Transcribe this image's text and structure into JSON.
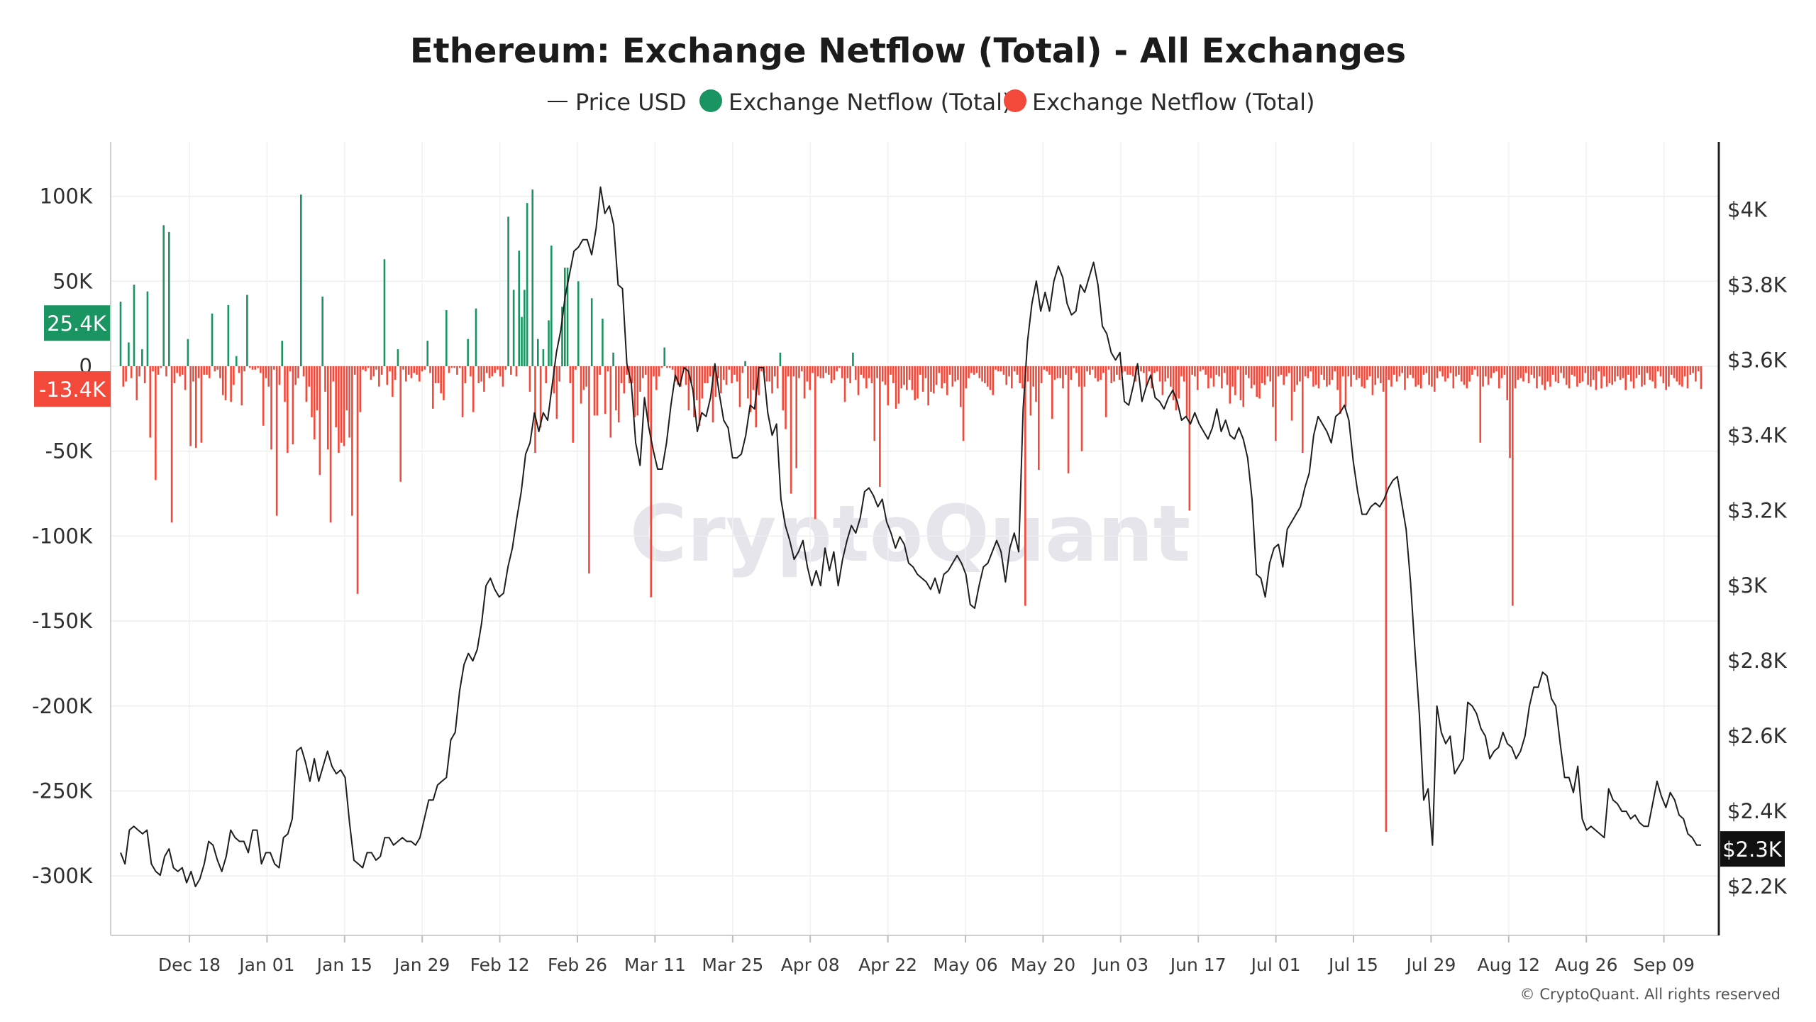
{
  "chart_data": {
    "type": "bar",
    "title": "Ethereum: Exchange Netflow (Total) - All Exchanges",
    "legend": [
      {
        "label": "Price USD",
        "symbol": "line",
        "color": "#222222"
      },
      {
        "label": "Exchange Netflow (Total)",
        "symbol": "dot",
        "color": "#1a9461"
      },
      {
        "label": "Exchange Netflow (Total)",
        "symbol": "dot",
        "color": "#f2493b"
      }
    ],
    "legend_position": "top",
    "x_ticks": [
      "Dec 18",
      "Jan 01",
      "Jan 15",
      "Jan 29",
      "Feb 12",
      "Feb 26",
      "Mar 11",
      "Mar 25",
      "Apr 08",
      "Apr 22",
      "May 06",
      "May 20",
      "Jun 03",
      "Jun 17",
      "Jul 01",
      "Jul 15",
      "Jul 29",
      "Aug 12",
      "Aug 26",
      "Sep 09"
    ],
    "left_axis": {
      "ticks": [
        "100K",
        "50K",
        "0",
        "-50K",
        "-100K",
        "-150K",
        "-200K",
        "-250K",
        "-300K"
      ],
      "ylim": [
        -335000,
        132000
      ]
    },
    "right_axis": {
      "ticks": [
        "$4K",
        "$3.8K",
        "$3.6K",
        "$3.4K",
        "$3.2K",
        "$3K",
        "$2.8K",
        "$2.6K",
        "$2.4K",
        "$2.2K"
      ],
      "ylim": [
        2070,
        4180
      ]
    },
    "badges": {
      "pos_value": "25.4K",
      "neg_value": "-13.4K",
      "price_value": "$2.3K"
    },
    "colors": {
      "inflow": "#1a9461",
      "outflow": "#f2493b",
      "price": "#1e1e1e",
      "badge_price": "#111111"
    },
    "watermark": "CryptoQuant",
    "copyright": "© CryptoQuant. All rights reserved",
    "grid": true,
    "series": [
      {
        "name": "Exchange Netflow (Total)",
        "kind": "bar",
        "values": [
          38000,
          -12000,
          -9000,
          14000,
          -7000,
          48000,
          -20000,
          -6000,
          10000,
          -10000,
          44000,
          -42000,
          -3000,
          -67000,
          -5000,
          -1000,
          83000,
          -6000,
          79000,
          -92000,
          -10000,
          -4000,
          -6000,
          -5000,
          -14000,
          16000,
          -47000,
          -9000,
          -48000,
          -7000,
          -45000,
          -5000,
          -5000,
          -7000,
          31000,
          -3000,
          -2000,
          -7000,
          -17000,
          -20000,
          36000,
          -21000,
          -11000,
          6000,
          -4000,
          -23000,
          -3000,
          42000,
          -1000,
          -2000,
          -2000,
          -1000,
          -4000,
          -35000,
          -7000,
          -12000,
          -49000,
          -2000,
          -88000,
          -11000,
          15000,
          -21000,
          -51000,
          -3000,
          -46000,
          -11000,
          -7000,
          101000,
          -6000,
          -21000,
          -12000,
          -30000,
          -43000,
          -26000,
          -64000,
          41000,
          -15000,
          -49000,
          -92000,
          -9000,
          -36000,
          -51000,
          -45000,
          -47000,
          -26000,
          -42000,
          -88000,
          -5000,
          -134000,
          -27000,
          -2000,
          -3000,
          -1000,
          -8000,
          -6000,
          -2000,
          -12000,
          -5000,
          63000,
          -11000,
          -3000,
          -18000,
          -8000,
          10000,
          -68000,
          -2000,
          -9000,
          -5000,
          -7000,
          -4000,
          -5000,
          -9000,
          -3000,
          -2000,
          15000,
          -4000,
          -25000,
          -10000,
          -10000,
          -16000,
          -20000,
          33000,
          -4000,
          -1000,
          -1000,
          -5000,
          -1000,
          -30000,
          -10000,
          16000,
          -6000,
          -27000,
          34000,
          -10000,
          -9000,
          -15000,
          -4000,
          -7000,
          -6000,
          -4000,
          -2000,
          -6000,
          -12000,
          -2000,
          88000,
          -5000,
          45000,
          -6000,
          68000,
          29000,
          45000,
          96000,
          -15000,
          104000,
          -51000,
          16000,
          -36000,
          10000,
          -10000,
          27000,
          71000,
          -16000,
          -31000,
          -9000,
          35000,
          58000,
          58000,
          -10000,
          -45000,
          -2000,
          50000,
          -22000,
          -14000,
          -12000,
          -122000,
          40000,
          -29000,
          -29000,
          -5000,
          28000,
          -28000,
          -3000,
          -42000,
          8000,
          -26000,
          -33000,
          -10000,
          -16000,
          -5000,
          -10000,
          -10000,
          -30000,
          -29000,
          -15000,
          -7000,
          -5000,
          -33000,
          -136000,
          -6000,
          -14000,
          -6000,
          -1000,
          11000,
          -1000,
          -1000,
          -2000,
          -9000,
          -11000,
          -12000,
          -2000,
          -11000,
          -26000,
          -10000,
          -30000,
          -20000,
          -35000,
          -19000,
          -10000,
          -10000,
          -6000,
          -33000,
          -18000,
          -7000,
          -16000,
          -8000,
          -11000,
          -2000,
          -10000,
          -5000,
          -9000,
          -24000,
          -4000,
          3000,
          -19000,
          -27000,
          -14000,
          -36000,
          -17000,
          -3000,
          -4000,
          -9000,
          -9000,
          -16000,
          -6000,
          -13000,
          8000,
          -26000,
          -37000,
          -6000,
          -75000,
          -6000,
          -60000,
          -7000,
          -3000,
          -19000,
          -9000,
          -14000,
          -4000,
          -90000,
          -6000,
          -7000,
          -7000,
          -4000,
          -5000,
          -10000,
          -8000,
          -3000,
          -1000,
          -7000,
          -21000,
          -7000,
          -10000,
          8000,
          -8000,
          -17000,
          -5000,
          -7000,
          -13000,
          -7000,
          -10000,
          -44000,
          -7000,
          -71000,
          -9000,
          -11000,
          -23000,
          -5000,
          -10000,
          -25000,
          -22000,
          -13000,
          -11000,
          -14000,
          -8000,
          -14000,
          -20000,
          -19000,
          -5000,
          -15000,
          -7000,
          -23000,
          -15000,
          -16000,
          -11000,
          -4000,
          -13000,
          -10000,
          -17000,
          -5000,
          -12000,
          -9000,
          -8000,
          -24000,
          -44000,
          -13000,
          -7000,
          -4000,
          -5000,
          -4000,
          -7000,
          -9000,
          -10000,
          -12000,
          -14000,
          -17000,
          -2000,
          -3000,
          -3000,
          -5000,
          -11000,
          -6000,
          -13000,
          -3000,
          -5000,
          -10000,
          -13000,
          -141000,
          -9000,
          -29000,
          -12000,
          -21000,
          -61000,
          -10000,
          -2000,
          -3000,
          -5000,
          -31000,
          -8000,
          -7000,
          -7000,
          -13000,
          -5000,
          -63000,
          -8000,
          -1000,
          -4000,
          -12000,
          -50000,
          -12000,
          -3000,
          -5000,
          -2000,
          -7000,
          -9000,
          -8000,
          -4000,
          -30000,
          -2000,
          -10000,
          -9000,
          -5000,
          -8000,
          -4000,
          -3000,
          -5000,
          -5000,
          -6000,
          -9000,
          -5000,
          -3000,
          -4000,
          -12000,
          -3000,
          -13000,
          -4000,
          -3000,
          -9000,
          -17000,
          -9000,
          -7000,
          -12000,
          -20000,
          -26000,
          -19000,
          -6000,
          -9000,
          -30000,
          -85000,
          -5000,
          -6000,
          -14000,
          -3000,
          -2000,
          -5000,
          -13000,
          -7000,
          -12000,
          -5000,
          -6000,
          -13000,
          -4000,
          -11000,
          -22000,
          -12000,
          -17000,
          -2000,
          -20000,
          -24000,
          -5000,
          -7000,
          -13000,
          -11000,
          -18000,
          -19000,
          -10000,
          -11000,
          -6000,
          -9000,
          -24000,
          -44000,
          -6000,
          -5000,
          -11000,
          -6000,
          -4000,
          -32000,
          -15000,
          -11000,
          -9000,
          -51000,
          -6000,
          -7000,
          -3000,
          -12000,
          -11000,
          -13000,
          -5000,
          -8000,
          -12000,
          -11000,
          -8000,
          -3000,
          -14000,
          -28000,
          -6000,
          -24000,
          -6000,
          -12000,
          -5000,
          -8000,
          -7000,
          -12000,
          -13000,
          -8000,
          -6000,
          -17000,
          -11000,
          -7000,
          -10000,
          -15000,
          -274000,
          -8000,
          -12000,
          -5000,
          -9000,
          -6000,
          -4000,
          -14000,
          -7000,
          -5000,
          -7000,
          -12000,
          -11000,
          -13000,
          -5000,
          -4000,
          -11000,
          -12000,
          -15000,
          -7000,
          -3000,
          -6000,
          -9000,
          -7000,
          -4000,
          -13000,
          -6000,
          -5000,
          -9000,
          -11000,
          -13000,
          -9000,
          -5000,
          -2000,
          -6000,
          -45000,
          -12000,
          -6000,
          -11000,
          -7000,
          -4000,
          -3000,
          -13000,
          -7000,
          -5000,
          -20000,
          -54000,
          -141000,
          -13000,
          -8000,
          -7000,
          -9000,
          -4000,
          -10000,
          -5000,
          -7000,
          -13000,
          -6000,
          -11000,
          -14000,
          -9000,
          -12000,
          -5000,
          -9000,
          -10000,
          -4000,
          -7000,
          -11000,
          -13000,
          -5000,
          -6000,
          -12000,
          -10000,
          -9000,
          -4000,
          -11000,
          -12000,
          -8000,
          -14000,
          -3000,
          -13000,
          -6000,
          -12000,
          -10000,
          -11000,
          -9000,
          -6000,
          -8000,
          -7000,
          -14000,
          -5000,
          -9000,
          -13000,
          -7000,
          -5000,
          -12000,
          -11000,
          -4000,
          -8000,
          -9000,
          -13000,
          -3000,
          -6000,
          -10000,
          -14000,
          -12000,
          -5000,
          -7000,
          -9000,
          -11000,
          -12000,
          -6000,
          -13000,
          -5000,
          -4000,
          -9000,
          -3000,
          -13400
        ]
      },
      {
        "name": "Price USD",
        "kind": "line",
        "values": [
          2290,
          2260,
          2350,
          2360,
          2350,
          2340,
          2350,
          2260,
          2240,
          2230,
          2280,
          2300,
          2250,
          2240,
          2250,
          2210,
          2240,
          2200,
          2220,
          2260,
          2320,
          2310,
          2270,
          2240,
          2280,
          2350,
          2330,
          2320,
          2320,
          2290,
          2350,
          2350,
          2260,
          2290,
          2290,
          2260,
          2250,
          2330,
          2340,
          2380,
          2560,
          2570,
          2530,
          2480,
          2540,
          2480,
          2520,
          2560,
          2520,
          2500,
          2510,
          2490,
          2370,
          2270,
          2260,
          2250,
          2290,
          2290,
          2270,
          2280,
          2330,
          2330,
          2310,
          2320,
          2330,
          2320,
          2320,
          2310,
          2330,
          2380,
          2430,
          2430,
          2470,
          2480,
          2490,
          2590,
          2610,
          2720,
          2790,
          2820,
          2800,
          2830,
          2900,
          3000,
          3020,
          2990,
          2970,
          2980,
          3050,
          3100,
          3180,
          3250,
          3350,
          3380,
          3460,
          3410,
          3460,
          3440,
          3530,
          3620,
          3680,
          3770,
          3830,
          3890,
          3900,
          3920,
          3920,
          3880,
          3950,
          4060,
          3990,
          4010,
          3960,
          3800,
          3790,
          3590,
          3540,
          3380,
          3320,
          3500,
          3420,
          3360,
          3310,
          3310,
          3380,
          3480,
          3560,
          3530,
          3580,
          3570,
          3520,
          3410,
          3460,
          3450,
          3500,
          3590,
          3510,
          3440,
          3420,
          3340,
          3340,
          3350,
          3400,
          3480,
          3470,
          3580,
          3580,
          3460,
          3400,
          3430,
          3230,
          3160,
          3120,
          3070,
          3090,
          3120,
          3050,
          3000,
          3040,
          3000,
          3100,
          3040,
          3090,
          3000,
          3070,
          3120,
          3160,
          3140,
          3180,
          3250,
          3260,
          3240,
          3210,
          3230,
          3170,
          3140,
          3100,
          3130,
          3110,
          3060,
          3050,
          3030,
          3020,
          3010,
          2990,
          3020,
          2980,
          3030,
          3040,
          3060,
          3080,
          3060,
          3030,
          2950,
          2940,
          3000,
          3050,
          3060,
          3090,
          3120,
          3090,
          3010,
          3100,
          3140,
          3090,
          3470,
          3650,
          3750,
          3810,
          3730,
          3780,
          3730,
          3810,
          3850,
          3820,
          3750,
          3720,
          3730,
          3800,
          3780,
          3820,
          3860,
          3800,
          3690,
          3670,
          3620,
          3600,
          3620,
          3490,
          3480,
          3530,
          3590,
          3490,
          3530,
          3560,
          3500,
          3490,
          3470,
          3500,
          3520,
          3490,
          3440,
          3450,
          3430,
          3460,
          3430,
          3410,
          3390,
          3420,
          3470,
          3410,
          3440,
          3400,
          3390,
          3420,
          3390,
          3340,
          3230,
          3030,
          3020,
          2970,
          3060,
          3100,
          3110,
          3050,
          3150,
          3170,
          3190,
          3210,
          3260,
          3300,
          3400,
          3450,
          3430,
          3410,
          3380,
          3450,
          3460,
          3480,
          3440,
          3330,
          3250,
          3190,
          3190,
          3210,
          3220,
          3210,
          3230,
          3260,
          3280,
          3290,
          3220,
          3150,
          3010,
          2830,
          2660,
          2430,
          2460,
          2310,
          2680,
          2610,
          2580,
          2600,
          2500,
          2520,
          2540,
          2690,
          2680,
          2660,
          2620,
          2600,
          2540,
          2560,
          2570,
          2610,
          2580,
          2570,
          2540,
          2560,
          2600,
          2680,
          2730,
          2730,
          2770,
          2760,
          2700,
          2680,
          2580,
          2490,
          2490,
          2450,
          2520,
          2380,
          2350,
          2360,
          2350,
          2340,
          2330,
          2460,
          2430,
          2420,
          2400,
          2400,
          2380,
          2390,
          2370,
          2360,
          2360,
          2420,
          2480,
          2440,
          2410,
          2450,
          2430,
          2390,
          2380,
          2340,
          2330,
          2310,
          2310
        ]
      }
    ]
  }
}
